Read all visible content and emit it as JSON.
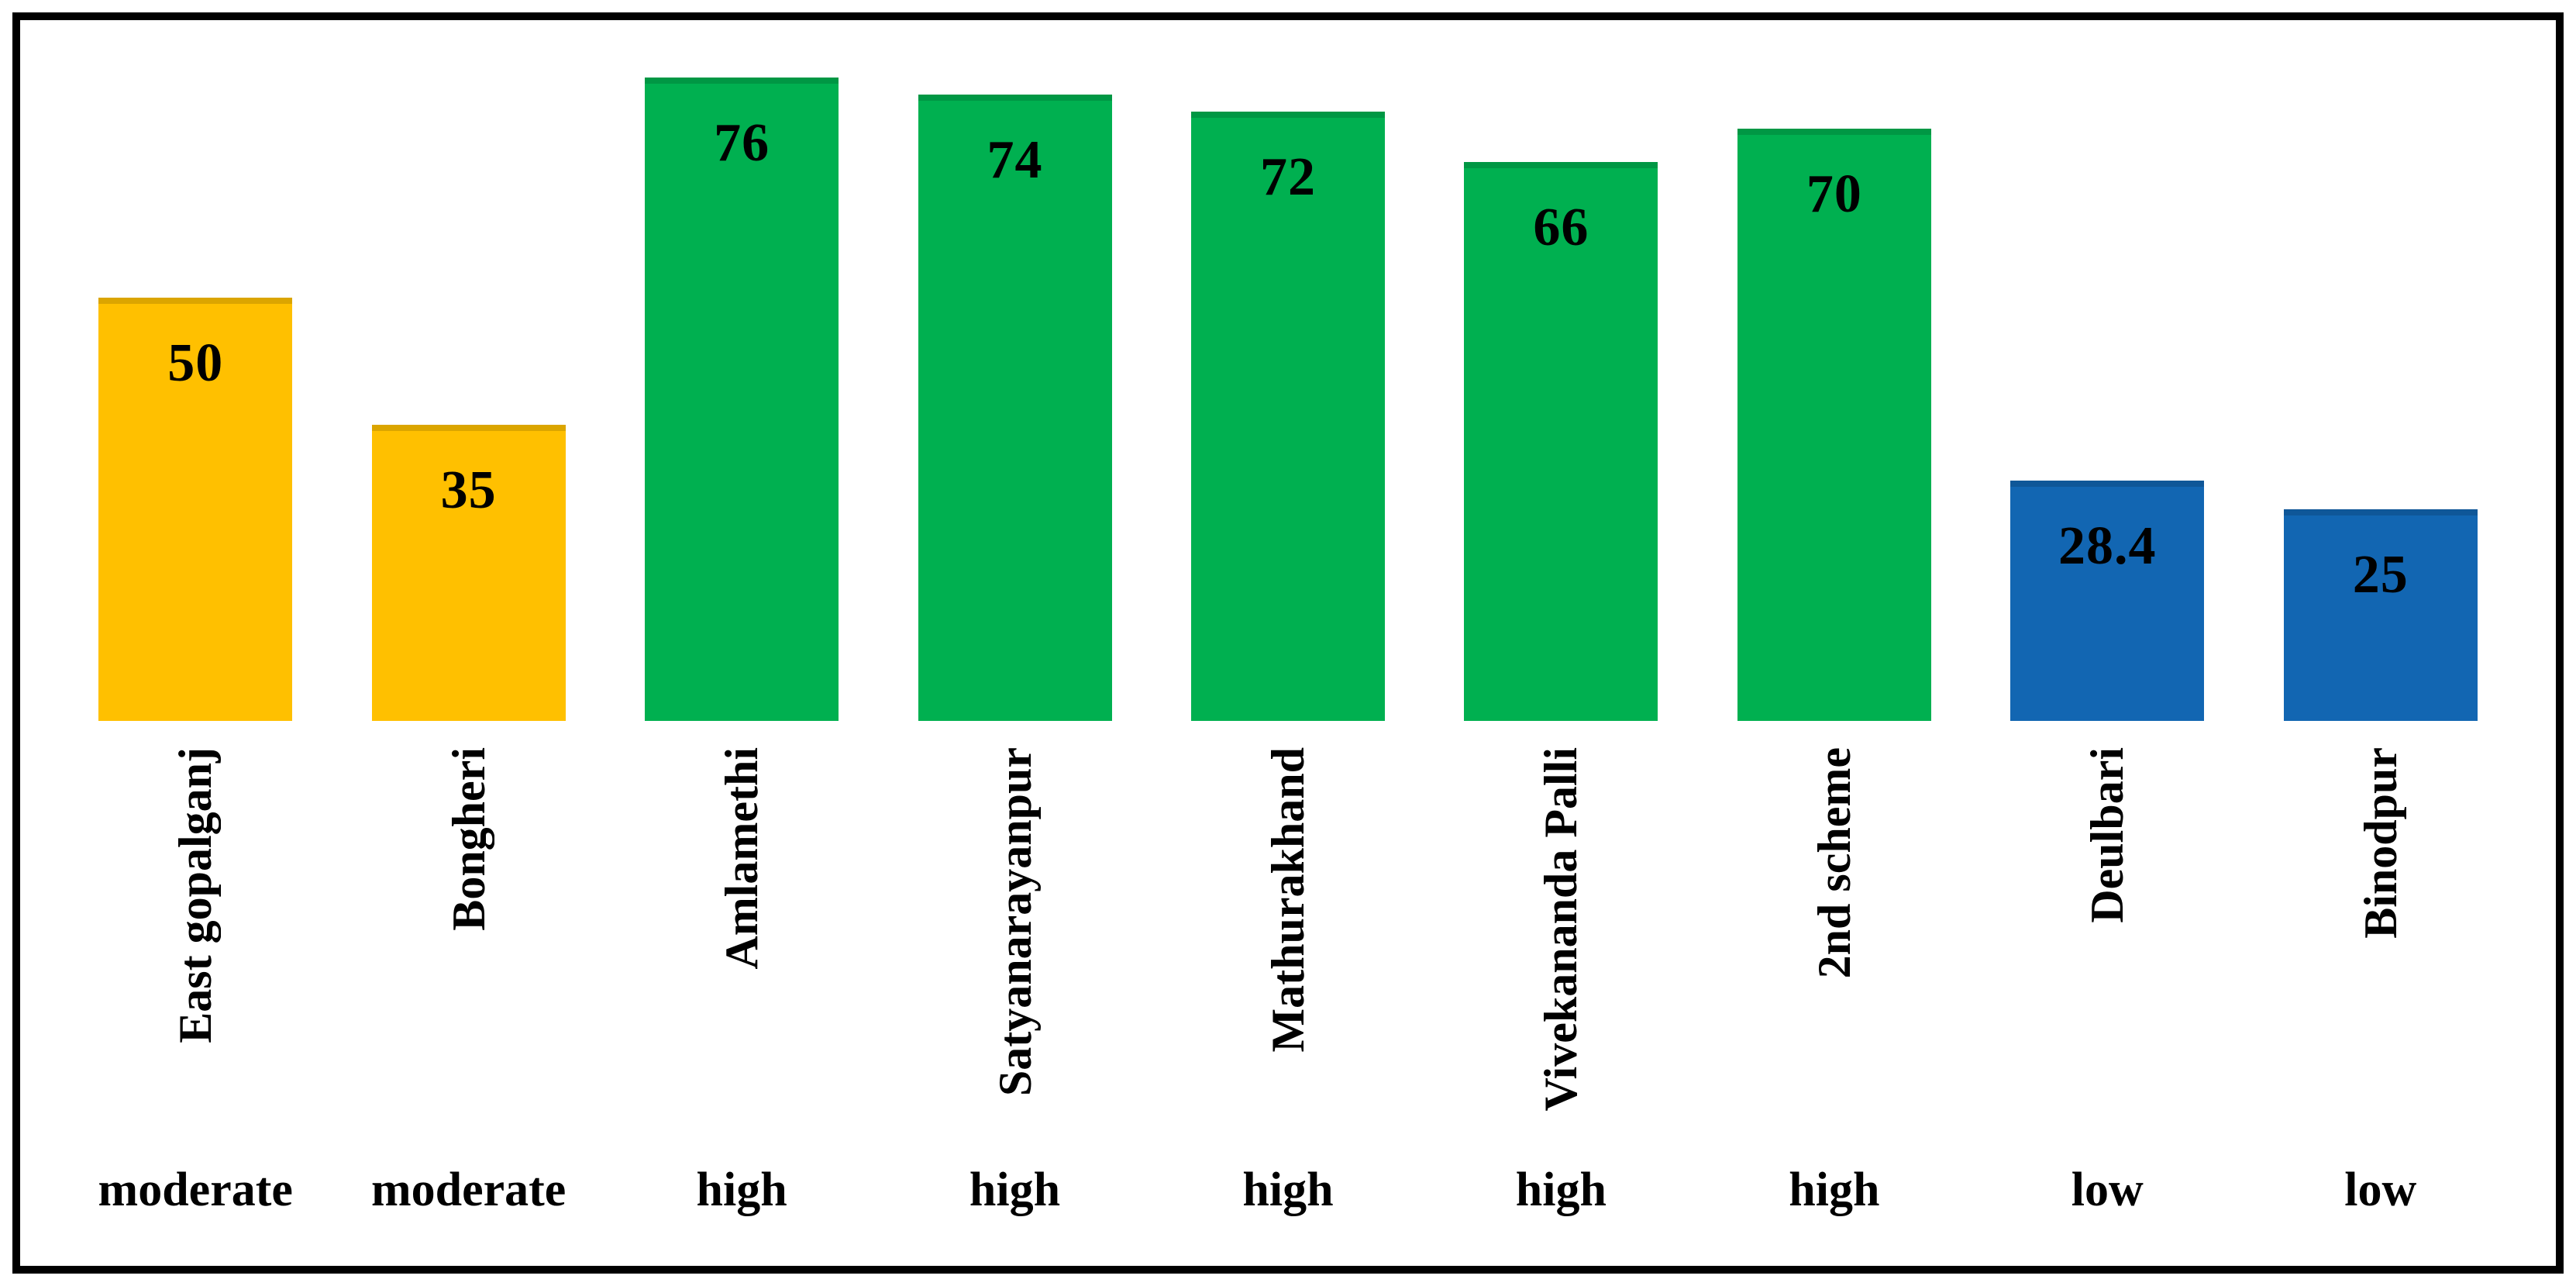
{
  "chart_data": {
    "type": "bar",
    "title": "",
    "xlabel": "",
    "ylabel": "",
    "ylim": [
      0,
      80
    ],
    "grid": false,
    "legend": null,
    "axes_visible": false,
    "categories": [
      "East gopalganj",
      "Bongheri",
      "Amlamethi",
      "Satyanarayanpur",
      "Mathurakhand",
      "Vivekananda Palli",
      "2nd scheme",
      "Deulbari",
      "Binodpur"
    ],
    "values": [
      50,
      35,
      76,
      74,
      72,
      66,
      70,
      28.4,
      25
    ],
    "value_labels": [
      "50",
      "35",
      "76",
      "74",
      "72",
      "66",
      "70",
      "28.4",
      "25"
    ],
    "levels": [
      "moderate",
      "moderate",
      "high",
      "high",
      "high",
      "high",
      "high",
      "low",
      "low"
    ],
    "bar_colors": [
      "#FFC000",
      "#FFC000",
      "#00B050",
      "#00B050",
      "#00B050",
      "#00B050",
      "#00B050",
      "#1266B2",
      "#1266B2"
    ],
    "level_colors": {
      "moderate": "#FFC000",
      "high": "#00B050",
      "low": "#1266B2"
    },
    "frame_color": "#000000",
    "value_label_position": "inside-top",
    "category_label_rotation_deg": 90
  }
}
